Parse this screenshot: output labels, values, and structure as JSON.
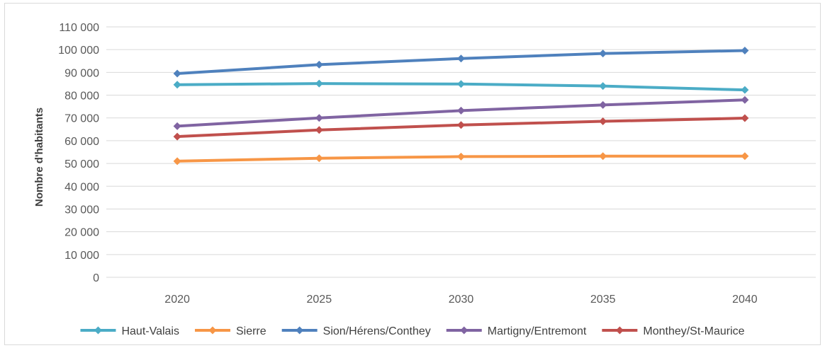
{
  "chart_data": {
    "type": "line",
    "title": "",
    "xlabel": "",
    "ylabel": "Nombre d'habitants",
    "categories": [
      "2020",
      "2025",
      "2030",
      "2035",
      "2040"
    ],
    "ylim": [
      0,
      110000
    ],
    "ytick_step": 10000,
    "ytick_labels": [
      "0",
      "10 000",
      "20 000",
      "30 000",
      "40 000",
      "50 000",
      "60 000",
      "70 000",
      "80 000",
      "90 000",
      "100 000",
      "110 000"
    ],
    "grid": true,
    "legend_position": "bottom",
    "series": [
      {
        "name": "Haut-Valais",
        "color": "#4bacc6",
        "values": [
          84600,
          85100,
          84900,
          84000,
          82300
        ]
      },
      {
        "name": "Sierre",
        "color": "#f79646",
        "values": [
          51000,
          52300,
          53000,
          53200,
          53200
        ]
      },
      {
        "name": "Sion/Hérens/Conthey",
        "color": "#4f81bd",
        "values": [
          89500,
          93400,
          96100,
          98300,
          99600
        ]
      },
      {
        "name": "Martigny/Entremont",
        "color": "#8064a2",
        "values": [
          66400,
          70000,
          73200,
          75700,
          77900
        ]
      },
      {
        "name": "Monthey/St-Maurice",
        "color": "#c0504d",
        "values": [
          61800,
          64700,
          66900,
          68500,
          69900
        ]
      }
    ]
  }
}
